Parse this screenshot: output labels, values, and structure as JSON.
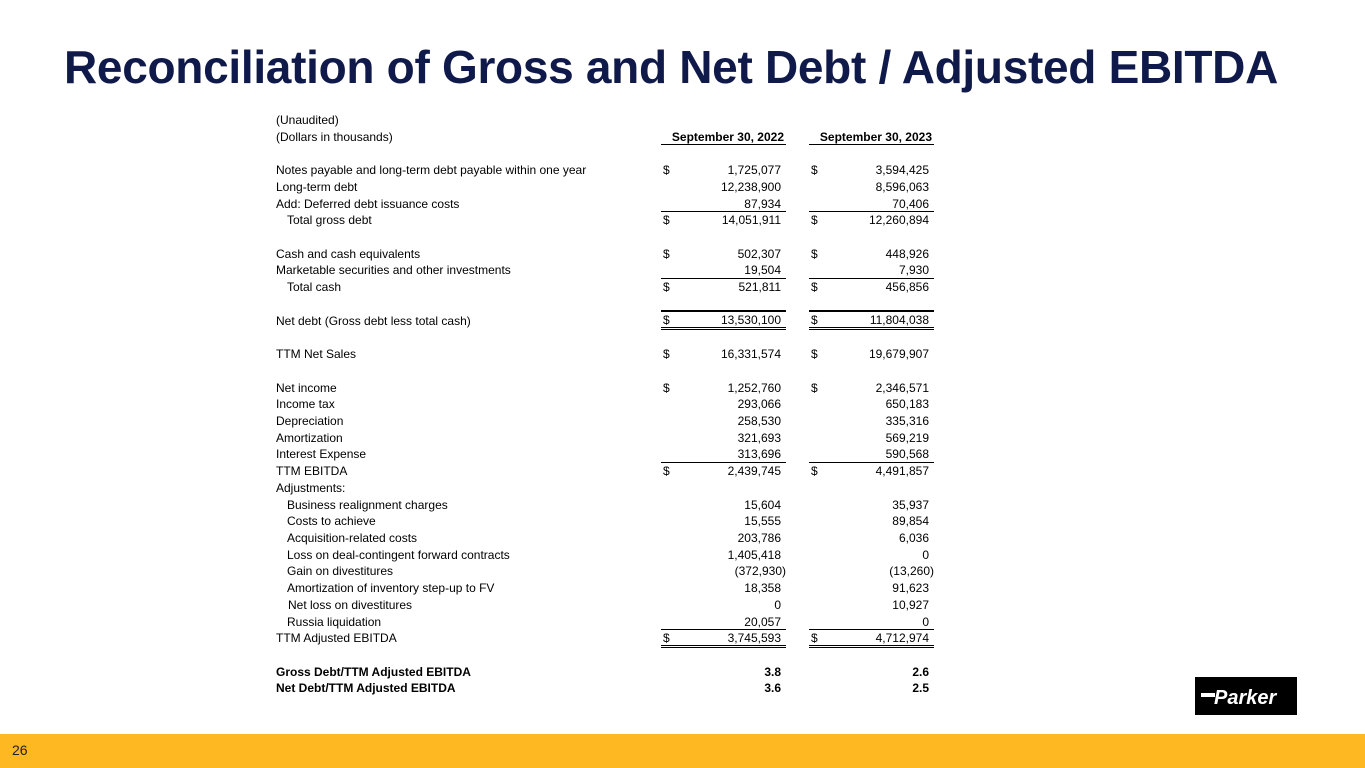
{
  "title": "Reconciliation of Gross and Net Debt / Adjusted EBITDA",
  "table": {
    "note1": "(Unaudited)",
    "note2": "(Dollars in thousands)",
    "columns": [
      "September 30, 2022",
      "September 30, 2023"
    ],
    "rows": [
      {
        "label": "Notes payable and long-term debt payable within one year",
        "d1": "$",
        "v1": "1,725,077",
        "d2": "$",
        "v2": "3,594,425"
      },
      {
        "label": "Long-term debt",
        "v1": "12,238,900",
        "v2": "8,596,063"
      },
      {
        "label": "Add: Deferred debt issuance costs",
        "v1": "87,934",
        "v2": "70,406"
      },
      {
        "label": "Total gross debt",
        "d1": "$",
        "v1": "14,051,911",
        "d2": "$",
        "v2": "12,260,894"
      },
      {
        "label": "Cash and cash equivalents",
        "d1": "$",
        "v1": "502,307",
        "d2": "$",
        "v2": "448,926"
      },
      {
        "label": "Marketable securities and other investments",
        "v1": "19,504",
        "v2": "7,930"
      },
      {
        "label": "Total cash",
        "d1": "$",
        "v1": "521,811",
        "d2": "$",
        "v2": "456,856"
      },
      {
        "label": "Net debt (Gross debt less total cash)",
        "d1": "$",
        "v1": "13,530,100",
        "d2": "$",
        "v2": "11,804,038"
      },
      {
        "label": "TTM Net Sales",
        "d1": "$",
        "v1": "16,331,574",
        "d2": "$",
        "v2": "19,679,907"
      },
      {
        "label": "Net income",
        "d1": "$",
        "v1": "1,252,760",
        "d2": "$",
        "v2": "2,346,571"
      },
      {
        "label": "Income tax",
        "v1": "293,066",
        "v2": "650,183"
      },
      {
        "label": "Depreciation",
        "v1": "258,530",
        "v2": "335,316"
      },
      {
        "label": "Amortization",
        "v1": "321,693",
        "v2": "569,219"
      },
      {
        "label": "Interest Expense",
        "v1": "313,696",
        "v2": "590,568"
      },
      {
        "label": "TTM EBITDA",
        "d1": "$",
        "v1": "2,439,745",
        "d2": "$",
        "v2": "4,491,857"
      },
      {
        "label": "Adjustments:"
      },
      {
        "label": "Business realignment charges",
        "v1": "15,604",
        "v2": "35,937"
      },
      {
        "label": "Costs to achieve",
        "v1": "15,555",
        "v2": "89,854"
      },
      {
        "label": "Acquisition-related costs",
        "v1": "203,786",
        "v2": "6,036"
      },
      {
        "label": "Loss on deal-contingent forward contracts",
        "v1": "1,405,418",
        "v2": "0"
      },
      {
        "label": "Gain on divestitures",
        "v1": "(372,930)",
        "v2": "(13,260)"
      },
      {
        "label": "Amortization of inventory step-up to FV",
        "v1": "18,358",
        "v2": "91,623"
      },
      {
        "label": "Net loss on divestitures",
        "v1": "0",
        "v2": "10,927"
      },
      {
        "label": "Russia liquidation",
        "v1": "20,057",
        "v2": "0"
      },
      {
        "label": "TTM Adjusted EBITDA",
        "d1": "$",
        "v1": "3,745,593",
        "d2": "$",
        "v2": "4,712,974"
      },
      {
        "label": "Gross Debt/TTM Adjusted EBITDA",
        "v1": "3.8",
        "v2": "2.6"
      },
      {
        "label": "Net Debt/TTM Adjusted EBITDA",
        "v1": "3.6",
        "v2": "2.5"
      }
    ]
  },
  "footer": {
    "page_number": "26"
  },
  "logo": {
    "text": "Parker"
  },
  "colors": {
    "title": "#0f1a4a",
    "footer": "#fdb822"
  }
}
